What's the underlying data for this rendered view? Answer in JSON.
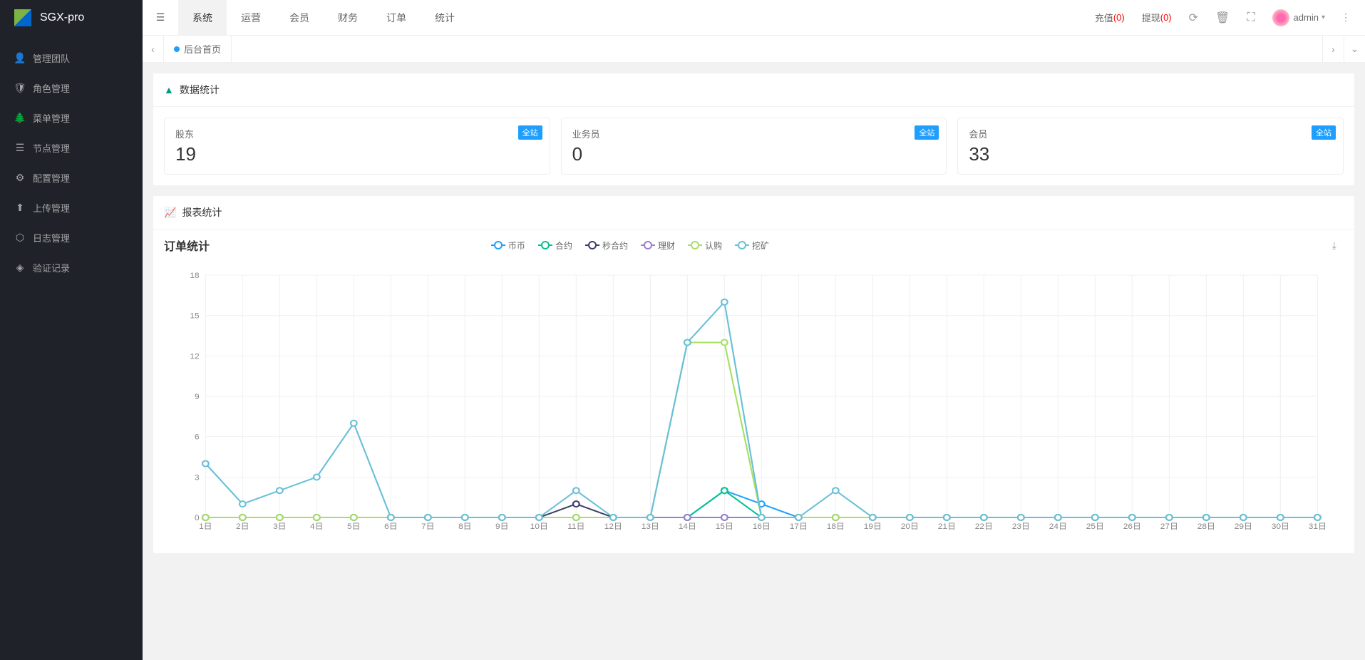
{
  "brand": "SGX-pro",
  "sidebar": {
    "items": [
      {
        "icon": "👤",
        "label": "管理团队"
      },
      {
        "icon": "🛡",
        "label": "角色管理"
      },
      {
        "icon": "🌲",
        "label": "菜单管理"
      },
      {
        "icon": "☰",
        "label": "节点管理"
      },
      {
        "icon": "⚙",
        "label": "配置管理"
      },
      {
        "icon": "⬆",
        "label": "上传管理"
      },
      {
        "icon": "⬡",
        "label": "日志管理"
      },
      {
        "icon": "◈",
        "label": "验证记录"
      }
    ]
  },
  "header": {
    "tabs": [
      {
        "label": "系统",
        "active": true
      },
      {
        "label": "运营",
        "active": false
      },
      {
        "label": "会员",
        "active": false
      },
      {
        "label": "财务",
        "active": false
      },
      {
        "label": "订单",
        "active": false
      },
      {
        "label": "统计",
        "active": false
      }
    ],
    "recharge_label": "充值",
    "recharge_count": "(0)",
    "withdraw_label": "提现",
    "withdraw_count": "(0)",
    "admin": "admin"
  },
  "tabsbar": {
    "current": "后台首页"
  },
  "stats_section": {
    "title": "数据统计",
    "cards": [
      {
        "label": "股东",
        "value": "19",
        "badge": "全站"
      },
      {
        "label": "业务员",
        "value": "0",
        "badge": "全站"
      },
      {
        "label": "会员",
        "value": "33",
        "badge": "全站"
      }
    ]
  },
  "report_section": {
    "title": "报表统计"
  },
  "chart": {
    "title": "订单统计",
    "type": "line",
    "background_color": "#ffffff",
    "grid_color": "#f0f0f0",
    "axis_color": "#cccccc",
    "label_color": "#888888",
    "label_fontsize": 11,
    "ylim": [
      0,
      18
    ],
    "ytick_step": 3,
    "yticks": [
      0,
      3,
      6,
      9,
      12,
      15,
      18
    ],
    "xlabels": [
      "1日",
      "2日",
      "3日",
      "4日",
      "5日",
      "6日",
      "7日",
      "8日",
      "9日",
      "10日",
      "11日",
      "12日",
      "13日",
      "14日",
      "15日",
      "16日",
      "17日",
      "18日",
      "19日",
      "20日",
      "21日",
      "22日",
      "23日",
      "24日",
      "25日",
      "26日",
      "27日",
      "28日",
      "29日",
      "30日",
      "31日"
    ],
    "series": [
      {
        "name": "币币",
        "color": "#1e9fff",
        "values": [
          0,
          0,
          0,
          0,
          0,
          0,
          0,
          0,
          0,
          0,
          0,
          0,
          0,
          0,
          2,
          1,
          0,
          0,
          0,
          0,
          0,
          0,
          0,
          0,
          0,
          0,
          0,
          0,
          0,
          0,
          0
        ]
      },
      {
        "name": "合约",
        "color": "#00c292",
        "values": [
          0,
          0,
          0,
          0,
          0,
          0,
          0,
          0,
          0,
          0,
          0,
          0,
          0,
          0,
          2,
          0,
          0,
          0,
          0,
          0,
          0,
          0,
          0,
          0,
          0,
          0,
          0,
          0,
          0,
          0,
          0
        ]
      },
      {
        "name": "秒合约",
        "color": "#3b3e66",
        "values": [
          0,
          0,
          0,
          0,
          0,
          0,
          0,
          0,
          0,
          0,
          1,
          0,
          0,
          0,
          0,
          0,
          0,
          0,
          0,
          0,
          0,
          0,
          0,
          0,
          0,
          0,
          0,
          0,
          0,
          0,
          0
        ]
      },
      {
        "name": "理财",
        "color": "#9a7fd1",
        "values": [
          0,
          0,
          0,
          0,
          0,
          0,
          0,
          0,
          0,
          0,
          0,
          0,
          0,
          0,
          0,
          0,
          0,
          0,
          0,
          0,
          0,
          0,
          0,
          0,
          0,
          0,
          0,
          0,
          0,
          0,
          0
        ]
      },
      {
        "name": "认购",
        "color": "#a8e063",
        "values": [
          0,
          0,
          0,
          0,
          0,
          0,
          0,
          0,
          0,
          0,
          0,
          0,
          0,
          13,
          13,
          0,
          0,
          0,
          0,
          0,
          0,
          0,
          0,
          0,
          0,
          0,
          0,
          0,
          0,
          0,
          0
        ]
      },
      {
        "name": "挖矿",
        "color": "#69c0d8",
        "values": [
          4,
          1,
          2,
          3,
          7,
          0,
          0,
          0,
          0,
          0,
          2,
          0,
          0,
          13,
          16,
          0,
          0,
          2,
          0,
          0,
          0,
          0,
          0,
          0,
          0,
          0,
          0,
          0,
          0,
          0,
          0
        ]
      }
    ],
    "marker_radius": 4,
    "line_width": 2
  }
}
